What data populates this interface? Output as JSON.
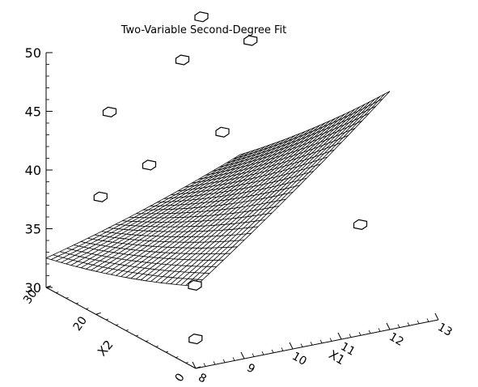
{
  "chart_data": {
    "type": "surface",
    "title": "Two-Variable Second-Degree Fit",
    "xlabel": "X1",
    "ylabel": "X2",
    "zlabel": "",
    "xlim": [
      8,
      13
    ],
    "ylim": [
      0,
      30
    ],
    "zlim": [
      30,
      50
    ],
    "x_ticks": [
      "8",
      "9",
      "10",
      "11",
      "12",
      "13"
    ],
    "y_ticks": [
      "0",
      "20",
      "30"
    ],
    "z_ticks": [
      "30",
      "35",
      "40",
      "45",
      "50"
    ],
    "grid": false,
    "surface": {
      "model": "z = c0 + c1*x1 + c2*x2 + c3*x1^2 + c4*x2^2 + c5*x1*x2",
      "x1_range": [
        8,
        12
      ],
      "x2_range": [
        0,
        30
      ],
      "corner_values": {
        "x1_8_x2_0": 32.5,
        "x1_12_x2_0": 38,
        "x1_8_x2_30": 37,
        "x1_12_x2_30": 49.5
      }
    },
    "points": [
      {
        "x1": 8.1,
        "x2": 1,
        "z": 32.2
      },
      {
        "x1": 8.6,
        "x2": 6,
        "z": 35.2
      },
      {
        "x1": 11.7,
        "x2": 3,
        "z": 38.5
      },
      {
        "x1": 8.3,
        "x2": 22,
        "z": 39.3
      },
      {
        "x1": 9.2,
        "x2": 21,
        "z": 41.5
      },
      {
        "x1": 10.4,
        "x2": 18,
        "z": 44.0
      },
      {
        "x1": 9.0,
        "x2": 27,
        "z": 44.8
      },
      {
        "x1": 10.5,
        "x2": 27,
        "z": 48.0
      },
      {
        "x1": 11.2,
        "x2": 30,
        "z": 50.4
      },
      {
        "x1": 11.8,
        "x2": 26,
        "z": 48.8
      }
    ]
  }
}
